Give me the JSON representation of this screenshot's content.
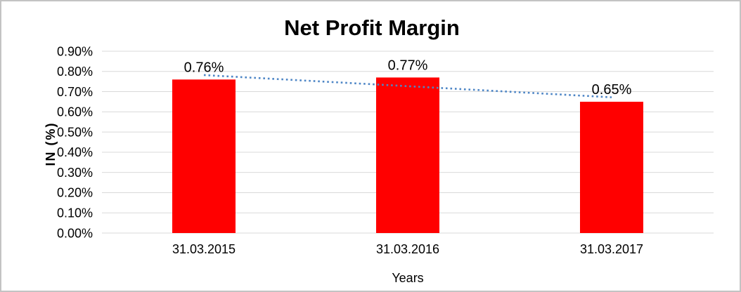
{
  "chart_data": {
    "type": "bar",
    "title": "Net Profit Margin",
    "xlabel": "Years",
    "ylabel": "IN (%)",
    "categories": [
      "31.03.2015",
      "31.03.2016",
      "31.03.2017"
    ],
    "series": [
      {
        "name": "Net Profit Margin",
        "values": [
          0.76,
          0.77,
          0.65
        ]
      }
    ],
    "data_labels": [
      "0.76%",
      "0.77%",
      "0.65%"
    ],
    "y_axis": {
      "min": 0,
      "max": 0.9,
      "step": 0.1,
      "tick_labels": [
        "0.00%",
        "0.10%",
        "0.20%",
        "0.30%",
        "0.40%",
        "0.50%",
        "0.60%",
        "0.70%",
        "0.80%",
        "0.90%"
      ]
    },
    "grid": "horizontal",
    "legend": "none",
    "trendline": {
      "type": "linear",
      "style": "dotted",
      "start_value": 0.782,
      "end_value": 0.672
    },
    "colors": {
      "bar": "#ff0000",
      "gridline": "#d9d9d9",
      "trendline": "#4e86c6",
      "text": "#000000",
      "border": "#c3c3c3"
    }
  }
}
